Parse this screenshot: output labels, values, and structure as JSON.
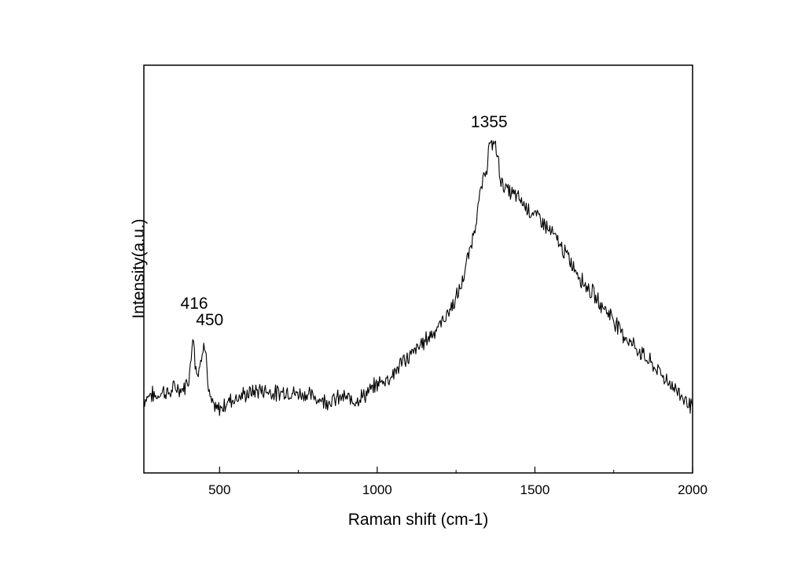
{
  "chart_data": {
    "type": "line",
    "title": "",
    "xlabel": "Raman shift (cm-1)",
    "ylabel": "Intensity(a.u.)",
    "xlim": [
      260,
      2000
    ],
    "ylim": [
      0,
      100
    ],
    "y_ticks_shown": false,
    "grid": false,
    "legend": "none",
    "line_color": "#000000",
    "x_ticks": [
      {
        "value": 500,
        "label": "500"
      },
      {
        "value": 1000,
        "label": "1000"
      },
      {
        "value": 1500,
        "label": "1500"
      },
      {
        "value": 2000,
        "label": "2000"
      }
    ],
    "annotations": [
      {
        "text": "416",
        "x": 416,
        "y": 36
      },
      {
        "text": "450",
        "x": 450,
        "y": 31
      },
      {
        "text": "1355",
        "x": 1355,
        "y": 91
      }
    ],
    "series": [
      {
        "x": [
          260,
          280,
          300,
          320,
          340,
          360,
          380,
          395,
          405,
          410,
          416,
          422,
          430,
          440,
          450,
          458,
          465,
          475,
          490,
          510,
          530,
          560,
          590,
          620,
          650,
          680,
          710,
          740,
          770,
          800,
          830,
          860,
          890,
          920,
          950,
          980,
          1000,
          1020,
          1040,
          1060,
          1080,
          1100,
          1120,
          1140,
          1160,
          1180,
          1200,
          1220,
          1240,
          1260,
          1270,
          1280,
          1290,
          1300,
          1310,
          1320,
          1330,
          1340,
          1350,
          1355,
          1362,
          1370,
          1380,
          1390,
          1400,
          1420,
          1440,
          1460,
          1480,
          1500,
          1520,
          1540,
          1560,
          1580,
          1600,
          1620,
          1640,
          1660,
          1680,
          1700,
          1720,
          1740,
          1760,
          1780,
          1800,
          1820,
          1840,
          1860,
          1880,
          1900,
          1920,
          1940,
          1960,
          1980,
          2000
        ],
        "y": [
          12,
          14,
          13,
          15,
          14,
          16,
          15,
          17,
          20,
          25,
          34,
          24,
          20,
          23,
          31,
          25,
          14,
          11,
          9,
          10,
          12,
          13,
          14,
          15,
          15,
          14,
          15,
          14,
          14,
          13,
          12,
          12,
          13,
          12,
          13,
          15,
          17,
          18,
          19,
          21,
          24,
          25,
          27,
          29,
          31,
          33,
          35,
          38,
          41,
          45,
          48,
          52,
          56,
          60,
          65,
          71,
          76,
          80,
          84,
          90,
          88,
          91,
          87,
          80,
          77,
          75,
          74,
          72,
          70,
          68,
          67,
          64,
          62,
          59,
          56,
          53,
          50,
          47,
          45,
          42,
          40,
          38,
          35,
          32,
          30,
          28,
          26,
          24,
          22,
          20,
          18,
          16,
          14,
          12,
          10
        ]
      }
    ]
  }
}
